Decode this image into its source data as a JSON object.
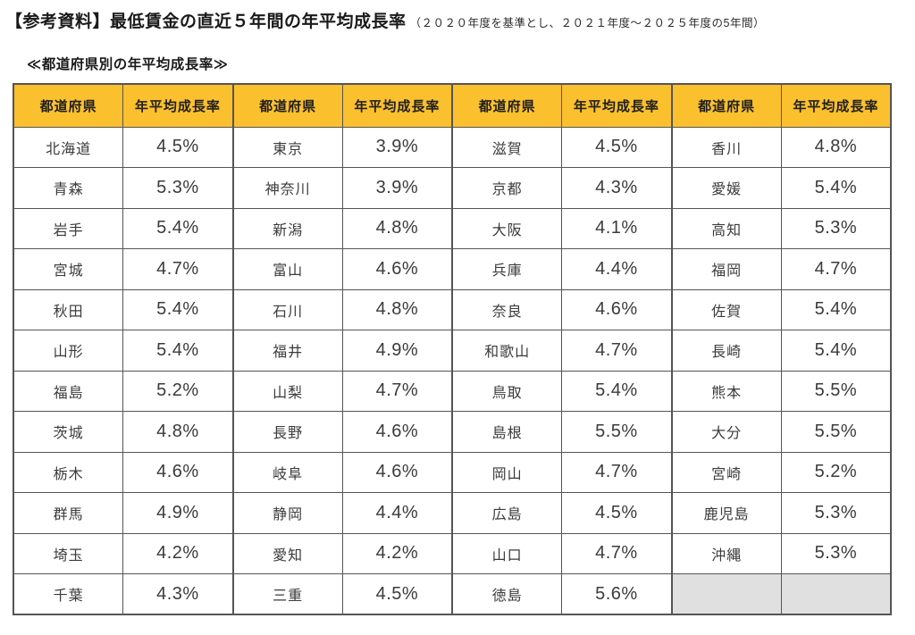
{
  "page": {
    "title": "【参考資料】最低賃金の直近５年間の年平均成長率",
    "title_note": "（２０２０年度を基準とし、２０２１年度～２０２５年度の5年間）",
    "subtitle": "≪都道府県別の年平均成長率≫"
  },
  "colors": {
    "header_bg": "#FBC02D",
    "empty_cell_bg": "#E0E0E0",
    "border": "#555555",
    "text": "#3B3B3B"
  },
  "table": {
    "header_labels": [
      "都道府県",
      "年平均成長率",
      "都道府県",
      "年平均成長率",
      "都道府県",
      "年平均成長率",
      "都道府県",
      "年平均成長率"
    ],
    "rows": [
      [
        "北海道",
        "4.5%",
        "東京",
        "3.9%",
        "滋賀",
        "4.5%",
        "香川",
        "4.8%"
      ],
      [
        "青森",
        "5.3%",
        "神奈川",
        "3.9%",
        "京都",
        "4.3%",
        "愛媛",
        "5.4%"
      ],
      [
        "岩手",
        "5.4%",
        "新潟",
        "4.8%",
        "大阪",
        "4.1%",
        "高知",
        "5.3%"
      ],
      [
        "宮城",
        "4.7%",
        "富山",
        "4.6%",
        "兵庫",
        "4.4%",
        "福岡",
        "4.7%"
      ],
      [
        "秋田",
        "5.4%",
        "石川",
        "4.8%",
        "奈良",
        "4.6%",
        "佐賀",
        "5.4%"
      ],
      [
        "山形",
        "5.4%",
        "福井",
        "4.9%",
        "和歌山",
        "4.7%",
        "長崎",
        "5.4%"
      ],
      [
        "福島",
        "5.2%",
        "山梨",
        "4.7%",
        "鳥取",
        "5.4%",
        "熊本",
        "5.5%"
      ],
      [
        "茨城",
        "4.8%",
        "長野",
        "4.6%",
        "島根",
        "5.5%",
        "大分",
        "5.5%"
      ],
      [
        "栃木",
        "4.6%",
        "岐阜",
        "4.6%",
        "岡山",
        "4.7%",
        "宮崎",
        "5.2%"
      ],
      [
        "群馬",
        "4.9%",
        "静岡",
        "4.4%",
        "広島",
        "4.5%",
        "鹿児島",
        "5.3%"
      ],
      [
        "埼玉",
        "4.2%",
        "愛知",
        "4.2%",
        "山口",
        "4.7%",
        "沖縄",
        "5.3%"
      ],
      [
        "千葉",
        "4.3%",
        "三重",
        "4.5%",
        "徳島",
        "5.6%",
        null,
        null
      ]
    ]
  }
}
